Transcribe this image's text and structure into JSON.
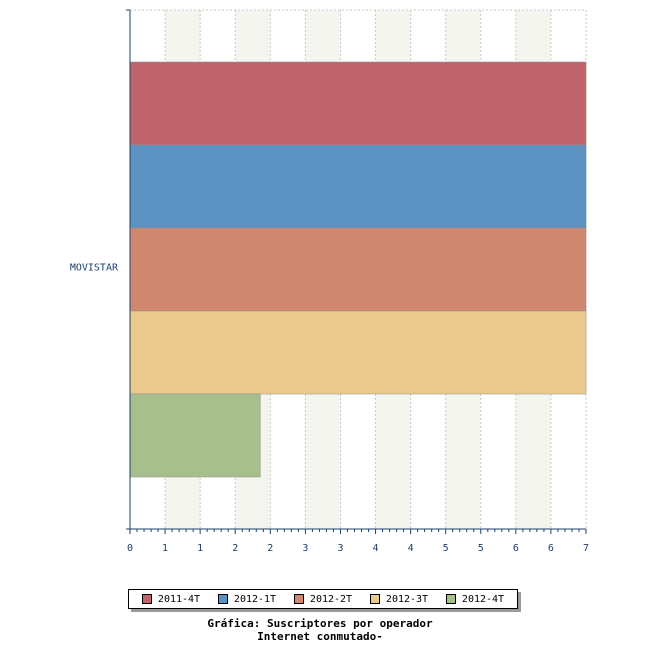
{
  "chart_data": {
    "type": "bar",
    "orientation": "horizontal",
    "categories": [
      "MOVISTAR"
    ],
    "series": [
      {
        "name": "2011-4T",
        "values": [
          7
        ],
        "color": "#c0646c"
      },
      {
        "name": "2012-1T",
        "values": [
          7
        ],
        "color": "#5b92c2"
      },
      {
        "name": "2012-2T",
        "values": [
          7
        ],
        "color": "#d0876f"
      },
      {
        "name": "2012-3T",
        "values": [
          7
        ],
        "color": "#eacb8d"
      },
      {
        "name": "2012-4T",
        "values": [
          2
        ],
        "color": "#a6bf8d"
      }
    ],
    "xlim": [
      0,
      7
    ],
    "x_tick_labels": [
      "0",
      "1",
      "1",
      "2",
      "2",
      "3",
      "3",
      "4",
      "4",
      "5",
      "5",
      "6",
      "6",
      "7"
    ],
    "title": "Gráfica: Suscriptores por operador",
    "subtitle": "Internet conmutado-",
    "grid": true,
    "legend_position": "bottom"
  }
}
